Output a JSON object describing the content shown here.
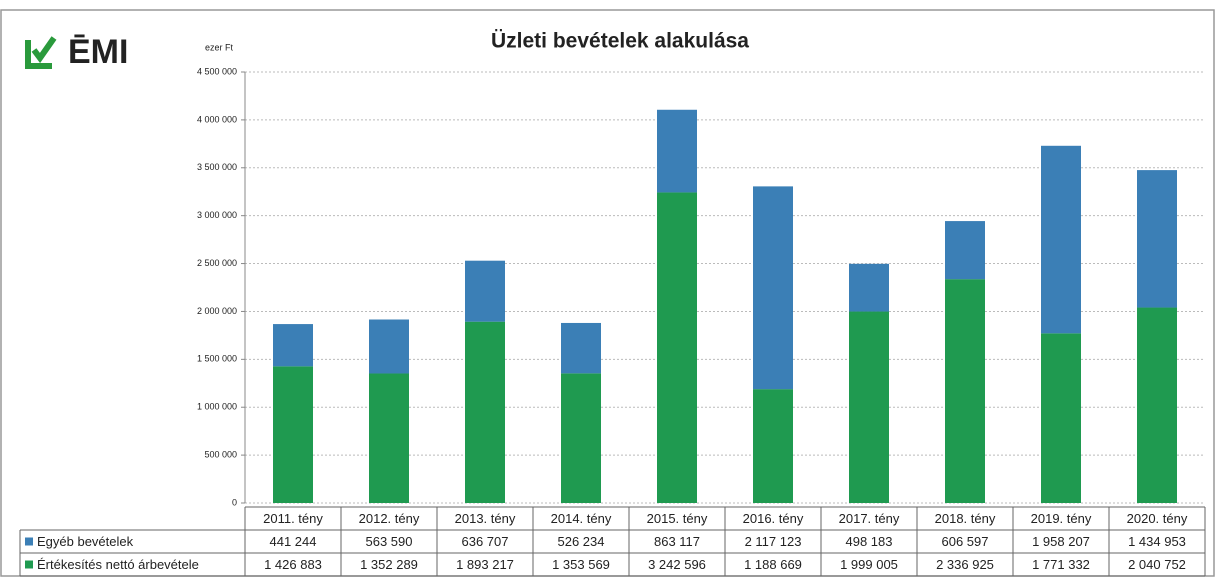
{
  "chart_data": {
    "type": "bar",
    "stacked": true,
    "logo": "ĒMI",
    "title": "Üzleti bevételek alakulása",
    "y_label": "ezer Ft",
    "categories": [
      "2011. tény",
      "2012. tény",
      "2013. tény",
      "2014. tény",
      "2015. tény",
      "2016. tény",
      "2017. tény",
      "2018. tény",
      "2019. tény",
      "2020. tény"
    ],
    "series": [
      {
        "name": "Egyéb bevételek",
        "color": "#3b7fb6",
        "values": [
          441244,
          563590,
          636707,
          526234,
          863117,
          2117123,
          498183,
          606597,
          1958207,
          1434953
        ],
        "value_labels": [
          "441 244",
          "563 590",
          "636 707",
          "526 234",
          "863 117",
          "2 117 123",
          "498 183",
          "606 597",
          "1 958 207",
          "1 434 953"
        ]
      },
      {
        "name": "Értékesítés nettó árbevétele",
        "color": "#1f9a50",
        "values": [
          1426883,
          1352289,
          1893217,
          1353569,
          3242596,
          1188669,
          1999005,
          2336925,
          1771332,
          2040752
        ],
        "value_labels": [
          "1 426 883",
          "1 352 289",
          "1 893 217",
          "1 353 569",
          "3 242 596",
          "1 188 669",
          "1 999 005",
          "2 336 925",
          "1 771 332",
          "2 040 752"
        ]
      }
    ],
    "ylim": [
      0,
      4500000
    ],
    "yticks": [
      0,
      {
        "value": 500000,
        "label": "500 000"
      },
      {
        "value": 1000000,
        "label": "1 000 000"
      },
      {
        "value": 1500000,
        "label": "1 500 000"
      },
      {
        "value": 2000000,
        "label": "2 000 000"
      },
      {
        "value": 2500000,
        "label": "2 500 000"
      },
      {
        "value": 3000000,
        "label": "3 000 000"
      },
      {
        "value": 3500000,
        "label": "3 500 000"
      },
      {
        "value": 4000000,
        "label": "4 000 000"
      },
      {
        "value": 4500000,
        "label": "4 500 000"
      }
    ],
    "grid": true
  }
}
